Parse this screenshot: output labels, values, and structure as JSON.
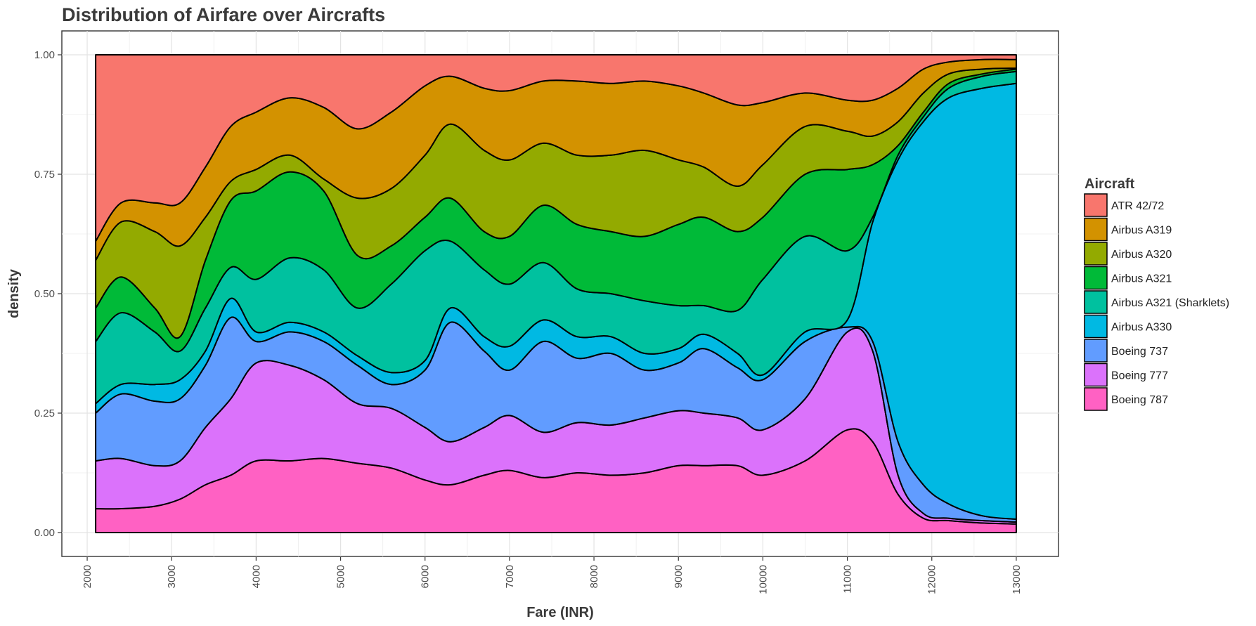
{
  "chart_data": {
    "type": "area",
    "stacking": "fill",
    "title": "Distribution of Airfare over Aircrafts",
    "xlabel": "Fare (INR)",
    "ylabel": "density",
    "xlim": [
      1700,
      13500
    ],
    "ylim": [
      -0.05,
      1.05
    ],
    "x_ticks": [
      2000,
      3000,
      4000,
      5000,
      6000,
      7000,
      8000,
      9000,
      10000,
      11000,
      12000,
      13000
    ],
    "y_ticks": [
      0.0,
      0.25,
      0.5,
      0.75,
      1.0
    ],
    "y_tick_labels": [
      "0.00",
      "0.25",
      "0.50",
      "0.75",
      "1.00"
    ],
    "grid": true,
    "legend_position": "right",
    "legend_title": "Aircraft",
    "x": [
      2100,
      2400,
      2800,
      3100,
      3400,
      3700,
      4000,
      4400,
      4800,
      5200,
      5600,
      6000,
      6300,
      6700,
      7000,
      7400,
      7800,
      8200,
      8600,
      9000,
      9300,
      9700,
      10000,
      10500,
      11000,
      11300,
      11600,
      11900,
      12200,
      12600,
      13000
    ],
    "cumulative_boundaries": [
      {
        "name": "Boeing 787",
        "values": [
          0.05,
          0.05,
          0.055,
          0.07,
          0.1,
          0.12,
          0.15,
          0.15,
          0.155,
          0.145,
          0.135,
          0.11,
          0.1,
          0.12,
          0.13,
          0.115,
          0.125,
          0.12,
          0.125,
          0.14,
          0.14,
          0.14,
          0.12,
          0.15,
          0.215,
          0.19,
          0.08,
          0.03,
          0.025,
          0.02,
          0.018
        ]
      },
      {
        "name": "Boeing 777",
        "values": [
          0.15,
          0.155,
          0.14,
          0.15,
          0.22,
          0.28,
          0.355,
          0.35,
          0.32,
          0.27,
          0.26,
          0.22,
          0.19,
          0.22,
          0.245,
          0.21,
          0.23,
          0.225,
          0.24,
          0.255,
          0.25,
          0.24,
          0.215,
          0.28,
          0.42,
          0.38,
          0.12,
          0.04,
          0.03,
          0.025,
          0.022
        ]
      },
      {
        "name": "Boeing 737",
        "values": [
          0.25,
          0.29,
          0.275,
          0.28,
          0.35,
          0.45,
          0.4,
          0.42,
          0.4,
          0.35,
          0.31,
          0.34,
          0.44,
          0.38,
          0.34,
          0.4,
          0.365,
          0.375,
          0.34,
          0.355,
          0.385,
          0.345,
          0.32,
          0.4,
          0.43,
          0.4,
          0.19,
          0.1,
          0.06,
          0.035,
          0.028
        ]
      },
      {
        "name": "Airbus A330",
        "values": [
          0.27,
          0.31,
          0.31,
          0.32,
          0.38,
          0.49,
          0.42,
          0.44,
          0.42,
          0.37,
          0.335,
          0.36,
          0.47,
          0.41,
          0.39,
          0.445,
          0.41,
          0.41,
          0.375,
          0.385,
          0.415,
          0.375,
          0.33,
          0.42,
          0.445,
          0.65,
          0.78,
          0.86,
          0.91,
          0.93,
          0.94
        ]
      },
      {
        "name": "Airbus A321 (Sharklets)",
        "values": [
          0.4,
          0.46,
          0.42,
          0.38,
          0.47,
          0.555,
          0.53,
          0.575,
          0.55,
          0.47,
          0.52,
          0.59,
          0.61,
          0.55,
          0.52,
          0.565,
          0.51,
          0.5,
          0.485,
          0.475,
          0.475,
          0.465,
          0.53,
          0.62,
          0.59,
          0.66,
          0.79,
          0.87,
          0.93,
          0.955,
          0.965
        ]
      },
      {
        "name": "Airbus A321",
        "values": [
          0.47,
          0.535,
          0.47,
          0.41,
          0.57,
          0.695,
          0.715,
          0.755,
          0.715,
          0.58,
          0.6,
          0.66,
          0.7,
          0.63,
          0.62,
          0.685,
          0.645,
          0.63,
          0.62,
          0.645,
          0.66,
          0.63,
          0.66,
          0.75,
          0.76,
          0.77,
          0.81,
          0.88,
          0.94,
          0.96,
          0.97
        ]
      },
      {
        "name": "Airbus A320",
        "values": [
          0.57,
          0.65,
          0.63,
          0.6,
          0.66,
          0.735,
          0.76,
          0.79,
          0.74,
          0.7,
          0.72,
          0.79,
          0.855,
          0.8,
          0.78,
          0.815,
          0.79,
          0.79,
          0.8,
          0.78,
          0.765,
          0.725,
          0.77,
          0.85,
          0.84,
          0.83,
          0.86,
          0.92,
          0.96,
          0.97,
          0.972
        ]
      },
      {
        "name": "Airbus A319",
        "values": [
          0.61,
          0.69,
          0.69,
          0.69,
          0.765,
          0.85,
          0.88,
          0.91,
          0.89,
          0.845,
          0.88,
          0.935,
          0.955,
          0.93,
          0.925,
          0.945,
          0.945,
          0.94,
          0.945,
          0.935,
          0.92,
          0.895,
          0.9,
          0.92,
          0.905,
          0.905,
          0.93,
          0.97,
          0.985,
          0.99,
          0.99
        ]
      },
      {
        "name": "ATR 42/72",
        "values": [
          1.0,
          1.0,
          1.0,
          1.0,
          1.0,
          1.0,
          1.0,
          1.0,
          1.0,
          1.0,
          1.0,
          1.0,
          1.0,
          1.0,
          1.0,
          1.0,
          1.0,
          1.0,
          1.0,
          1.0,
          1.0,
          1.0,
          1.0,
          1.0,
          1.0,
          1.0,
          1.0,
          1.0,
          1.0,
          1.0,
          1.0
        ]
      }
    ],
    "series": [
      {
        "name": "ATR 42/72",
        "color": "#F8766D"
      },
      {
        "name": "Airbus A319",
        "color": "#D39200"
      },
      {
        "name": "Airbus A320",
        "color": "#93AA00"
      },
      {
        "name": "Airbus A321",
        "color": "#00BA38"
      },
      {
        "name": "Airbus A321 (Sharklets)",
        "color": "#00C19F"
      },
      {
        "name": "Airbus A330",
        "color": "#00B9E3"
      },
      {
        "name": "Boeing 737",
        "color": "#619CFF"
      },
      {
        "name": "Boeing 777",
        "color": "#DB72FB"
      },
      {
        "name": "Boeing 787",
        "color": "#FF61C3"
      }
    ]
  }
}
